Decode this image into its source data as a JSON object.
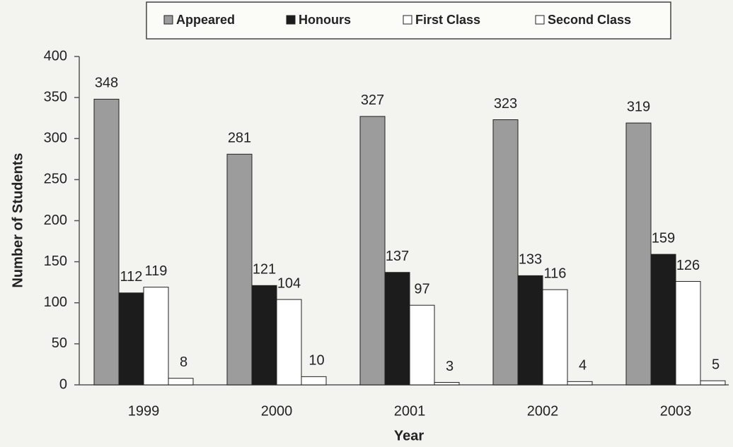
{
  "chart_data": {
    "type": "bar",
    "x_label": "Year",
    "y_label": "Number of Students",
    "categories": [
      "1999",
      "2000",
      "2001",
      "2002",
      "2003"
    ],
    "series": [
      {
        "name": "Appeared",
        "color": "#9c9c9c",
        "values": [
          348,
          281,
          327,
          323,
          319
        ]
      },
      {
        "name": "Honours",
        "color": "#1c1c1c",
        "values": [
          112,
          121,
          137,
          133,
          159
        ]
      },
      {
        "name": "First Class",
        "color": "#ffffff",
        "values": [
          119,
          104,
          97,
          116,
          126
        ]
      },
      {
        "name": "Second Class",
        "color": "#ffffff",
        "values": [
          8,
          10,
          3,
          4,
          5
        ]
      }
    ],
    "ylim": [
      0,
      400
    ],
    "yticks": [
      0,
      50,
      100,
      150,
      200,
      250,
      300,
      350,
      400
    ],
    "legend": "top"
  }
}
